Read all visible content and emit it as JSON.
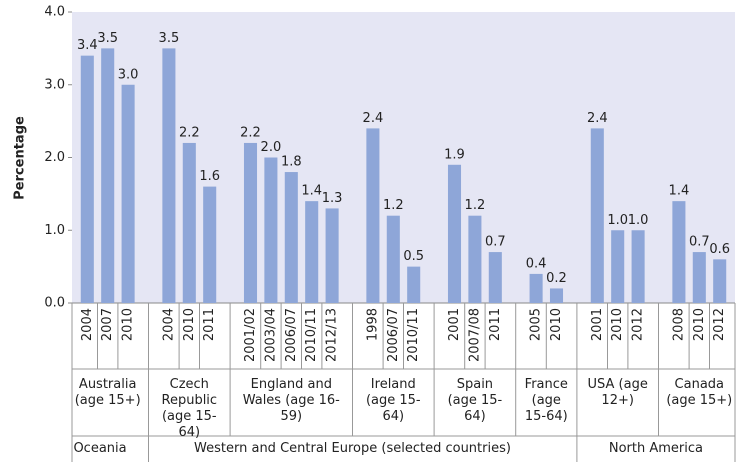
{
  "chart_data": {
    "type": "bar",
    "y_label": "Percentage",
    "color": "#8ea6d8",
    "plot_background": "#e5e6f4",
    "ylim": [
      0,
      4
    ],
    "yticks": [
      {
        "value": 0,
        "label": "0.0"
      },
      {
        "value": 1,
        "label": "1.0"
      },
      {
        "value": 2,
        "label": "2.0"
      },
      {
        "value": 3,
        "label": "3.0"
      },
      {
        "value": 4,
        "label": "4.0"
      }
    ],
    "regions": [
      {
        "name": "Oceania",
        "groups": [
          {
            "name": "Australia (age 15+)",
            "categories": [
              "2004",
              "2007",
              "2010"
            ],
            "values": [
              3.4,
              3.5,
              3.0
            ],
            "value_labels": [
              "3.4",
              "3.5",
              "3.0"
            ]
          }
        ]
      },
      {
        "name": "Western and Central Europe (selected countries)",
        "groups": [
          {
            "name": "Czech Republic (age 15-64)",
            "categories": [
              "2004",
              "2010",
              "2011"
            ],
            "values": [
              3.5,
              2.2,
              1.6
            ],
            "value_labels": [
              "3.5",
              "2.2",
              "1.6"
            ]
          },
          {
            "name": "England and Wales (age 16-59)",
            "categories": [
              "2001/02",
              "2003/04",
              "2006/07",
              "2010/11",
              "2012/13"
            ],
            "values": [
              2.2,
              2.0,
              1.8,
              1.4,
              1.3
            ],
            "value_labels": [
              "2.2",
              "2.0",
              "1.8",
              "1.4",
              "1.3"
            ]
          },
          {
            "name": "Ireland (age 15-64)",
            "categories": [
              "1998",
              "2006/07",
              "2010/11"
            ],
            "values": [
              2.4,
              1.2,
              0.5
            ],
            "value_labels": [
              "2.4",
              "1.2",
              "0.5"
            ]
          },
          {
            "name": "Spain (age 15-64)",
            "categories": [
              "2001",
              "2007/08",
              "2011"
            ],
            "values": [
              1.9,
              1.2,
              0.7
            ],
            "value_labels": [
              "1.9",
              "1.2",
              "0.7"
            ]
          },
          {
            "name": "France (age 15-64)",
            "categories": [
              "2005",
              "2010"
            ],
            "values": [
              0.4,
              0.2
            ],
            "value_labels": [
              "0.4",
              "0.2"
            ]
          }
        ]
      },
      {
        "name": "North America",
        "groups": [
          {
            "name": "USA (age 12+)",
            "categories": [
              "2001",
              "2010",
              "2012"
            ],
            "values": [
              2.4,
              1.0,
              1.0
            ],
            "value_labels": [
              "2.4",
              "1.0",
              "1.0"
            ]
          },
          {
            "name": "Canada (age 15+)",
            "categories": [
              "2008",
              "2010",
              "2012"
            ],
            "values": [
              1.4,
              0.7,
              0.6
            ],
            "value_labels": [
              "1.4",
              "0.7",
              "0.6"
            ]
          }
        ]
      }
    ]
  }
}
